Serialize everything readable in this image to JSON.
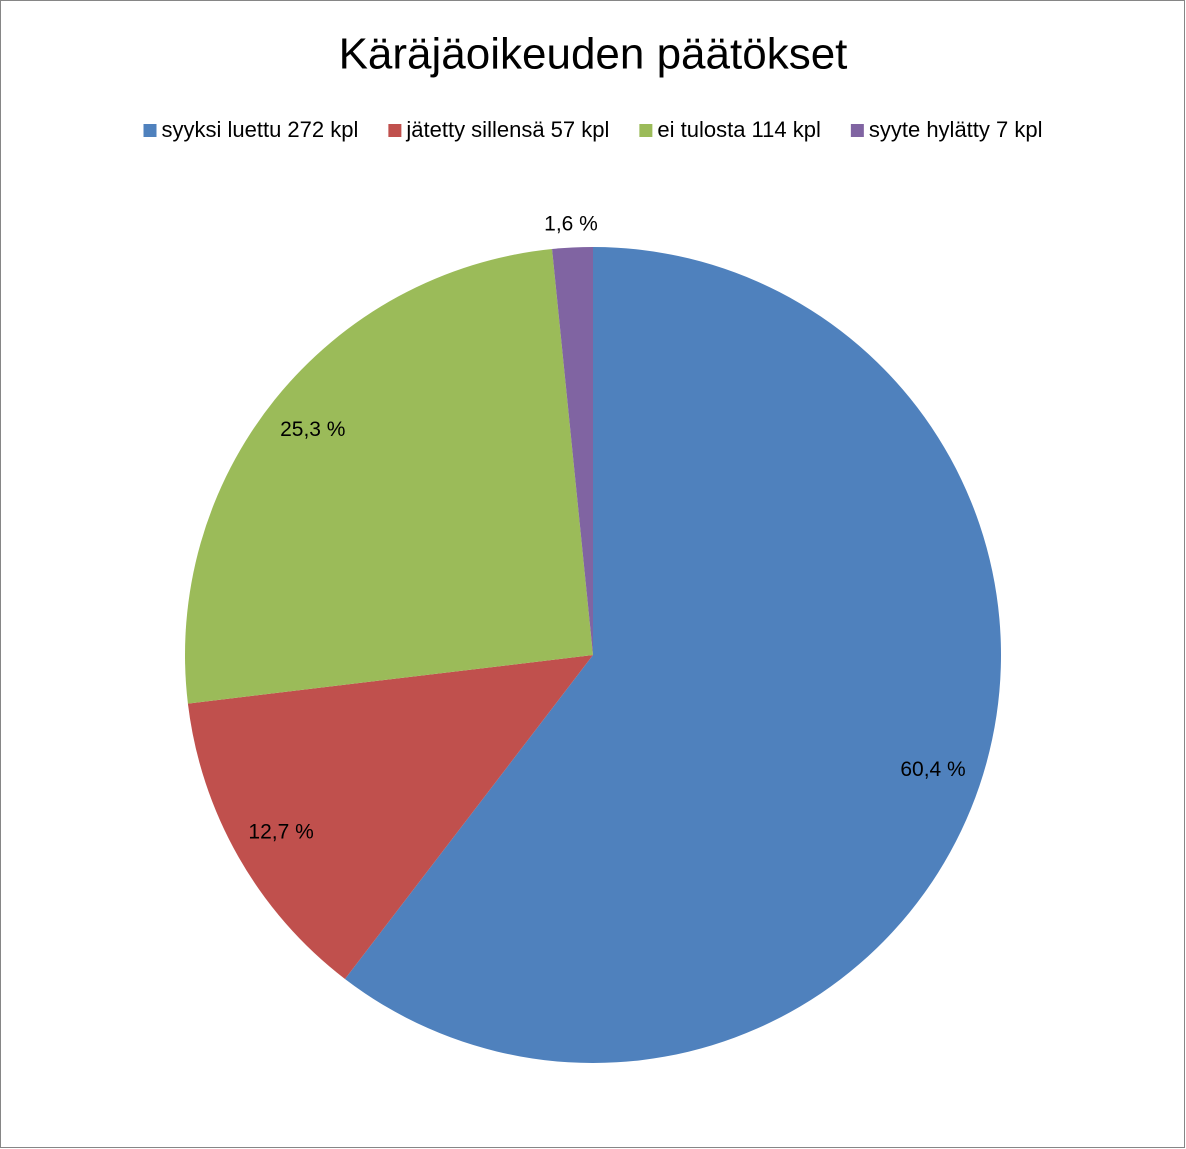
{
  "chart_data": {
    "type": "pie",
    "title": "Käräjäoikeuden päätökset",
    "categories": [
      "syyksi luettu 272 kpl",
      "jätetty sillensä 57 kpl",
      "ei tulosta 114 kpl",
      "syyte hylätty 7 kpl"
    ],
    "values": [
      60.4,
      12.7,
      25.3,
      1.6
    ],
    "value_labels": [
      "60,4 %",
      "12,7 %",
      "25,3 %",
      "1,6 %"
    ],
    "colors": [
      "#4f81bd",
      "#c0504d",
      "#9bbb59",
      "#8064a2"
    ],
    "legend": "top"
  }
}
